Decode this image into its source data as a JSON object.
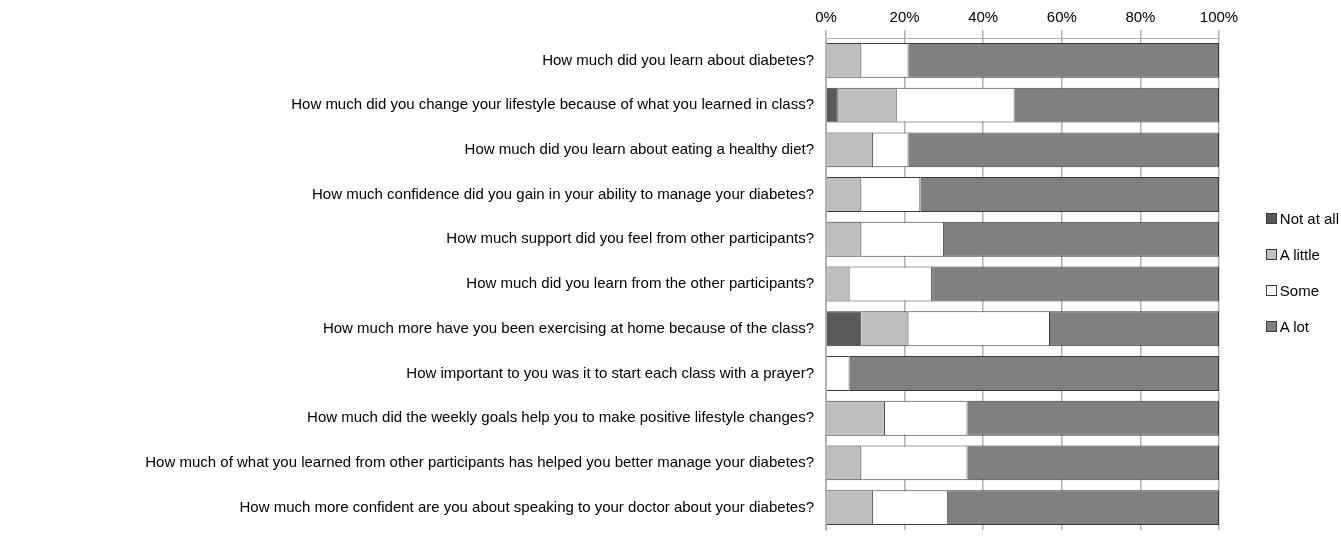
{
  "chart_data": {
    "type": "bar",
    "orientation": "horizontal",
    "stacked": true,
    "categories": [
      "How much did you learn about diabetes?",
      "How much did you change your lifestyle because of what you learned in class?",
      "How much did you learn about eating a healthy diet?",
      "How much confidence did you gain in your ability to manage your diabetes?",
      "How much support did you feel from other participants?",
      "How much did you learn from the other participants?",
      "How much more have you been exercising at home because of the class?",
      "How important to you was it to start each class with a prayer?",
      "How much did the weekly goals help you to make positive lifestyle changes?",
      "How much of what you learned from other participants has helped you better manage your diabetes?",
      "How much more confident are you about speaking to your doctor about your diabetes?"
    ],
    "series": [
      {
        "name": "Not at all",
        "color": "#595959",
        "values": [
          0,
          3,
          0,
          0,
          0,
          0,
          9,
          0,
          0,
          0,
          0
        ]
      },
      {
        "name": "A little",
        "color": "#bfbfbf",
        "values": [
          9,
          15,
          12,
          9,
          9,
          6,
          12,
          0,
          15,
          9,
          12
        ]
      },
      {
        "name": "Some",
        "color": "#ffffff",
        "values": [
          12,
          30,
          9,
          15,
          21,
          21,
          36,
          6,
          21,
          27,
          19
        ]
      },
      {
        "name": "A lot",
        "color": "#808080",
        "values": [
          79,
          52,
          79,
          76,
          70,
          73,
          43,
          94,
          64,
          64,
          69
        ]
      }
    ],
    "xlim": [
      0,
      100
    ],
    "xticks": [
      {
        "value": 0,
        "label": "0%"
      },
      {
        "value": 20,
        "label": "20%"
      },
      {
        "value": 40,
        "label": "40%"
      },
      {
        "value": 60,
        "label": "60%"
      },
      {
        "value": 80,
        "label": "80%"
      },
      {
        "value": 100,
        "label": "100%"
      }
    ],
    "grid": "x",
    "legend": "right"
  }
}
